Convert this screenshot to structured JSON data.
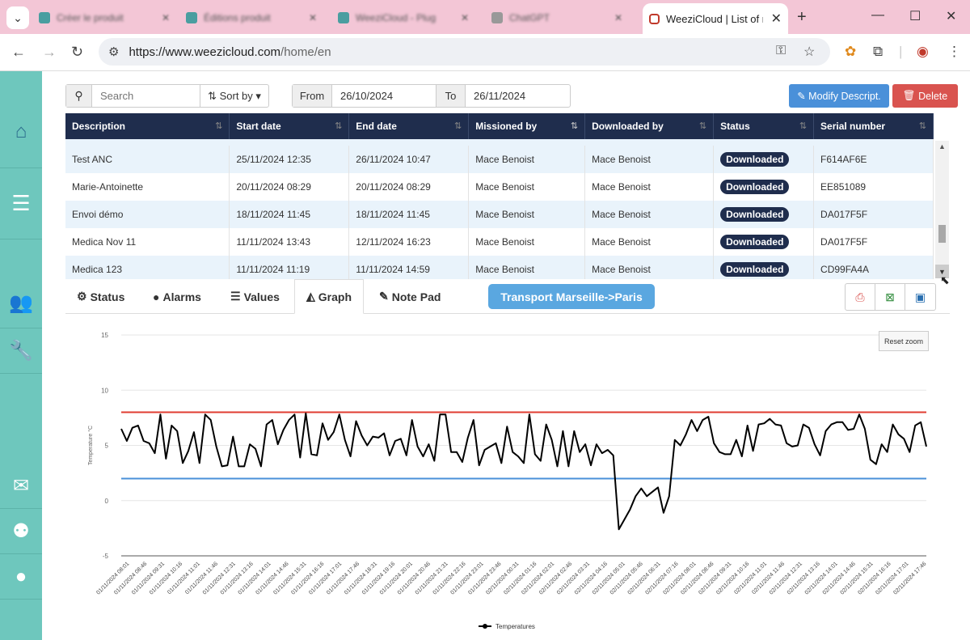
{
  "browser": {
    "tabs": [
      {
        "title": "Créer le produit"
      },
      {
        "title": "Éditions produit"
      },
      {
        "title": "WeeziCloud - Plug"
      },
      {
        "title": "ChatGPT"
      }
    ],
    "active_tab_title": "WeeziCloud | List of m",
    "url_prefix": "https://www.weezicloud.com",
    "url_path": "/home/en"
  },
  "toolbar": {
    "search_placeholder": "Search",
    "sort_label": "Sort by",
    "from_label": "From",
    "from_value": "26/10/2024",
    "to_label": "To",
    "to_value": "26/11/2024",
    "modify_label": "Modify Descript.",
    "delete_label": "Delete"
  },
  "table": {
    "headers": [
      "Description",
      "Start date",
      "End date",
      "Missioned by",
      "Downloaded by",
      "Status",
      "Serial number"
    ],
    "rows": [
      {
        "description": "Test ANC",
        "start": "25/11/2024 12:35",
        "end": "26/11/2024 10:47",
        "missioned": "Mace Benoist",
        "downloaded": "Mace Benoist",
        "status": "Downloaded",
        "serial": "F614AF6E"
      },
      {
        "description": "Marie-Antoinette",
        "start": "20/11/2024 08:29",
        "end": "20/11/2024 08:29",
        "missioned": "Mace Benoist",
        "downloaded": "Mace Benoist",
        "status": "Downloaded",
        "serial": "EE851089"
      },
      {
        "description": "Envoi démo",
        "start": "18/11/2024 11:45",
        "end": "18/11/2024 11:45",
        "missioned": "Mace Benoist",
        "downloaded": "Mace Benoist",
        "status": "Downloaded",
        "serial": "DA017F5F"
      },
      {
        "description": "Medica Nov 11",
        "start": "11/11/2024 13:43",
        "end": "12/11/2024 16:23",
        "missioned": "Mace Benoist",
        "downloaded": "Mace Benoist",
        "status": "Downloaded",
        "serial": "DA017F5F"
      },
      {
        "description": "Medica 123",
        "start": "11/11/2024 11:19",
        "end": "11/11/2024 14:59",
        "missioned": "Mace Benoist",
        "downloaded": "Mace Benoist",
        "status": "Downloaded",
        "serial": "CD99FA4A"
      }
    ]
  },
  "panel_tabs": [
    "Status",
    "Alarms",
    "Values",
    "Graph",
    "Note Pad"
  ],
  "active_panel_tab": "Graph",
  "mission_title": "Transport Marseille->Paris",
  "reset_zoom_label": "Reset zoom",
  "colors": {
    "sidebar": "#6ec7bd",
    "table_header": "#1f2d4d",
    "upper_limit": "#e03c31",
    "lower_limit": "#4a90d9",
    "series": "#000000"
  },
  "chart_data": {
    "type": "line",
    "ylabel": "Temperature °C",
    "ylim": [
      -5,
      15
    ],
    "yticks": [
      15,
      10,
      5,
      0,
      -5
    ],
    "upper_limit": 8,
    "lower_limit": 2,
    "legend": "Temperatures",
    "xtick_labels": [
      "01/11/2024 08:01",
      "01/11/2024 08:46",
      "01/11/2024 09:31",
      "01/11/2024 10:16",
      "01/11/2024 11:01",
      "01/11/2024 11:46",
      "01/11/2024 12:31",
      "01/11/2024 13:16",
      "01/11/2024 14:01",
      "01/11/2024 14:46",
      "01/11/2024 15:31",
      "01/11/2024 16:16",
      "01/11/2024 17:01",
      "01/11/2024 17:46",
      "01/11/2024 18:31",
      "01/11/2024 19:16",
      "01/11/2024 20:01",
      "01/11/2024 20:46",
      "01/11/2024 21:31",
      "01/11/2024 22:16",
      "01/11/2024 23:01",
      "01/11/2024 23:46",
      "02/11/2024 00:31",
      "02/11/2024 01:16",
      "02/11/2024 02:01",
      "02/11/2024 02:46",
      "02/11/2024 03:31",
      "02/11/2024 04:16",
      "02/11/2024 05:01",
      "02/11/2024 05:46",
      "02/11/2024 06:31",
      "02/11/2024 07:16",
      "02/11/2024 08:01",
      "02/11/2024 08:46",
      "02/11/2024 09:31",
      "02/11/2024 10:16",
      "02/11/2024 11:01",
      "02/11/2024 11:46",
      "02/11/2024 12:31",
      "02/11/2024 13:16",
      "02/11/2024 14:01",
      "02/11/2024 14:46",
      "02/11/2024 15:31",
      "02/11/2024 16:16",
      "02/11/2024 17:01",
      "02/11/2024 17:46"
    ],
    "series": [
      {
        "name": "Temperatures",
        "values": [
          6.5,
          5.4,
          6.6,
          6.8,
          5.4,
          5.2,
          4.3,
          7.8,
          3.8,
          6.8,
          6.3,
          3.4,
          4.5,
          6.2,
          3.4,
          7.8,
          7.3,
          4.9,
          3.1,
          3.2,
          5.8,
          3.1,
          3.1,
          5.1,
          4.7,
          3.1,
          6.9,
          7.3,
          5.1,
          6.4,
          7.3,
          7.8,
          3.9,
          7.9,
          4.2,
          4.1,
          7.0,
          5.5,
          6.2,
          7.8,
          5.5,
          4.0,
          7.2,
          5.9,
          5.0,
          5.8,
          5.7,
          6.1,
          4.1,
          5.4,
          5.6,
          4.1,
          7.3,
          4.9,
          4.0,
          5.1,
          3.6,
          7.8,
          7.8,
          4.4,
          4.4,
          3.5,
          5.7,
          7.3,
          3.2,
          4.6,
          4.9,
          5.2,
          3.4,
          6.7,
          4.4,
          4.0,
          3.4,
          7.8,
          4.2,
          3.6,
          6.9,
          5.5,
          3.1,
          6.3,
          3.1,
          6.3,
          4.4,
          5.1,
          3.2,
          5.1,
          4.3,
          4.6,
          4.1,
          -2.6,
          -1.7,
          -0.8,
          0.4,
          1.1,
          0.4,
          0.8,
          1.2,
          -1.1,
          0.4,
          5.5,
          5.0,
          6.0,
          7.3,
          6.3,
          7.3,
          7.6,
          5.2,
          4.4,
          4.2,
          4.2,
          5.5,
          4.0,
          6.8,
          4.5,
          6.9,
          7.0,
          7.4,
          6.9,
          6.8,
          5.2,
          4.9,
          5.0,
          6.9,
          6.6,
          5.1,
          4.1,
          6.3,
          6.9,
          7.1,
          7.1,
          6.4,
          6.5,
          7.8,
          6.5,
          3.7,
          3.3,
          5.1,
          4.4,
          6.9,
          6.0,
          5.6,
          4.4,
          6.8,
          7.1,
          4.9
        ]
      }
    ]
  }
}
